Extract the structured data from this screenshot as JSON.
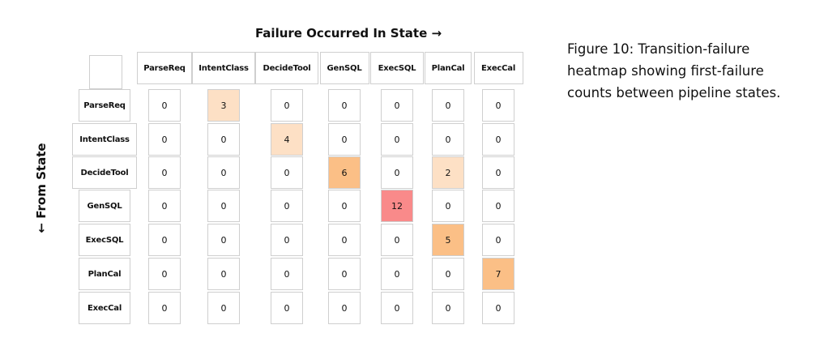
{
  "chart_data": {
    "type": "heatmap",
    "xlabel": "Failure Occurred In State →",
    "ylabel": "← From State",
    "columns": [
      "ParseReq",
      "IntentClass",
      "DecideTool",
      "GenSQL",
      "ExecSQL",
      "PlanCal",
      "ExecCal"
    ],
    "rows": [
      "ParseReq",
      "IntentClass",
      "DecideTool",
      "GenSQL",
      "ExecSQL",
      "PlanCal",
      "ExecCal"
    ],
    "values": [
      [
        0,
        3,
        0,
        0,
        0,
        0,
        0
      ],
      [
        0,
        0,
        4,
        0,
        0,
        0,
        0
      ],
      [
        0,
        0,
        0,
        6,
        0,
        2,
        0
      ],
      [
        0,
        0,
        0,
        0,
        12,
        0,
        0
      ],
      [
        0,
        0,
        0,
        0,
        0,
        5,
        0
      ],
      [
        0,
        0,
        0,
        0,
        0,
        0,
        7
      ],
      [
        0,
        0,
        0,
        0,
        0,
        0,
        0
      ]
    ],
    "color_scale": {
      "zero": "#ffffff",
      "low": "#fde0c5",
      "mid": "#fbbf86",
      "high": "#f98a8a"
    },
    "caption": "Figure 10: Transition-failure heatmap showing first-failure counts between pipeline states."
  }
}
